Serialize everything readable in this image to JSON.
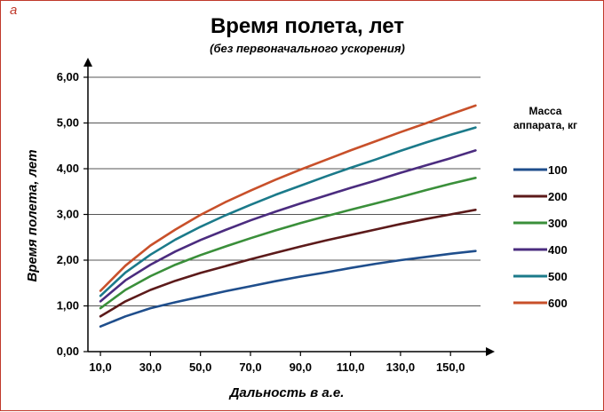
{
  "panel_letter": "а",
  "chart_data": {
    "type": "line",
    "title": "Время полета, лет",
    "subtitle": "(без первоначального ускорения)",
    "xlabel": "Дальность в а.е.",
    "ylabel": "Время полета, лет",
    "xlim": [
      5,
      162
    ],
    "ylim": [
      0,
      6
    ],
    "x_ticks": [
      10,
      30,
      50,
      70,
      90,
      110,
      130,
      150
    ],
    "x_tick_labels": [
      "10,0",
      "30,0",
      "50,0",
      "70,0",
      "90,0",
      "110,0",
      "130,0",
      "150,0"
    ],
    "y_ticks": [
      0,
      1,
      2,
      3,
      4,
      5,
      6
    ],
    "y_tick_labels": [
      "0,00",
      "1,00",
      "2,00",
      "3,00",
      "4,00",
      "5,00",
      "6,00"
    ],
    "grid": "horizontal",
    "legend_title_lines": [
      "Масса",
      "аппарата, кг"
    ],
    "legend_position": "right",
    "x": [
      10,
      20,
      30,
      40,
      50,
      60,
      70,
      80,
      90,
      100,
      110,
      120,
      130,
      140,
      150,
      160
    ],
    "series": [
      {
        "name": "100",
        "color": "#1f4e8c",
        "values": [
          0.55,
          0.77,
          0.95,
          1.08,
          1.2,
          1.32,
          1.43,
          1.54,
          1.64,
          1.73,
          1.83,
          1.92,
          2.0,
          2.07,
          2.14,
          2.2
        ]
      },
      {
        "name": "200",
        "color": "#5c1a1a",
        "values": [
          0.77,
          1.1,
          1.35,
          1.55,
          1.72,
          1.87,
          2.02,
          2.16,
          2.3,
          2.43,
          2.55,
          2.67,
          2.79,
          2.9,
          3.0,
          3.1
        ]
      },
      {
        "name": "300",
        "color": "#3a8f3a",
        "values": [
          0.95,
          1.35,
          1.65,
          1.9,
          2.11,
          2.3,
          2.48,
          2.65,
          2.81,
          2.96,
          3.1,
          3.24,
          3.38,
          3.53,
          3.67,
          3.8
        ]
      },
      {
        "name": "400",
        "color": "#4b2c7f",
        "values": [
          1.1,
          1.56,
          1.9,
          2.19,
          2.44,
          2.66,
          2.87,
          3.06,
          3.24,
          3.41,
          3.58,
          3.74,
          3.91,
          4.07,
          4.23,
          4.4
        ]
      },
      {
        "name": "500",
        "color": "#1b7a8a",
        "values": [
          1.22,
          1.73,
          2.12,
          2.45,
          2.73,
          2.98,
          3.21,
          3.43,
          3.63,
          3.83,
          4.02,
          4.2,
          4.39,
          4.57,
          4.74,
          4.9
        ]
      },
      {
        "name": "600",
        "color": "#c8502a",
        "values": [
          1.33,
          1.88,
          2.32,
          2.67,
          2.99,
          3.27,
          3.52,
          3.76,
          3.98,
          4.19,
          4.4,
          4.6,
          4.8,
          4.99,
          5.19,
          5.38
        ]
      }
    ]
  }
}
